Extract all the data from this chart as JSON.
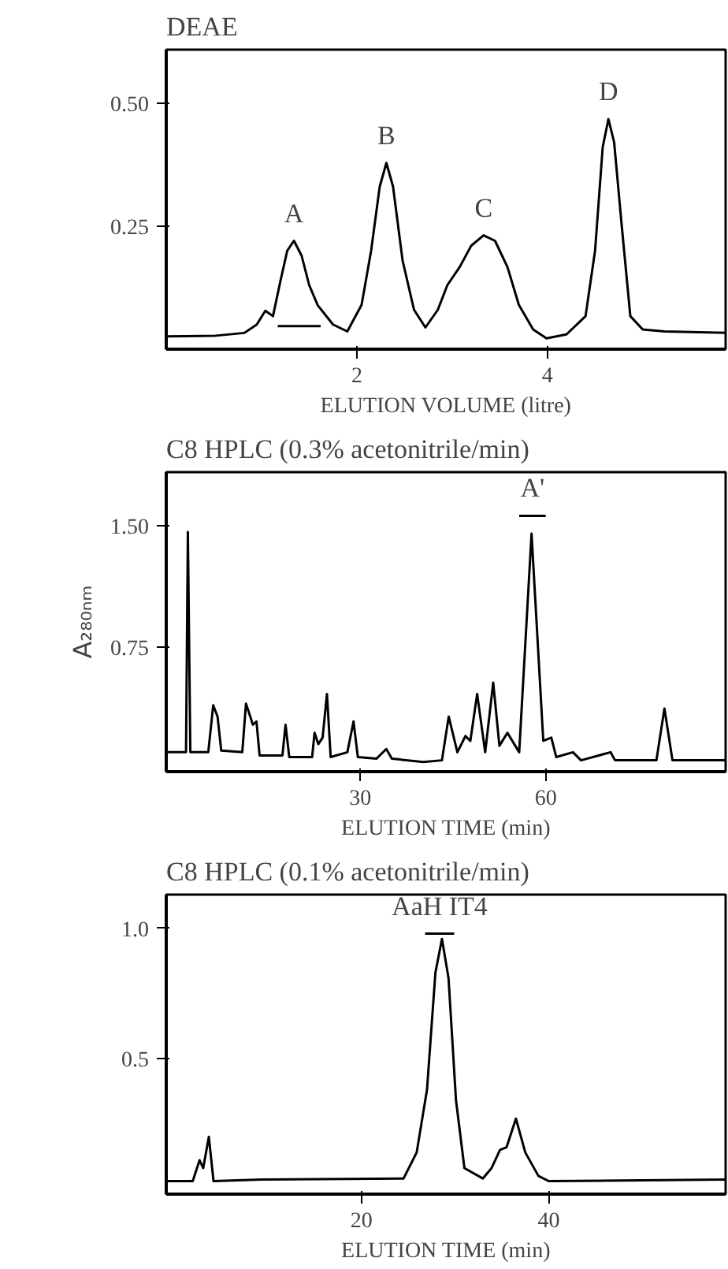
{
  "chart_data": [
    {
      "type": "line",
      "title": "DEAE",
      "xlabel": "ELUTION VOLUME (litre)",
      "xlim": [
        0,
        5.87
      ],
      "ylim": [
        0,
        0.608
      ],
      "xticks": [
        2,
        4
      ],
      "yticks": [
        {
          "value": 0.5,
          "label": "0.50"
        },
        0.25
      ],
      "grid": false,
      "marker": "none",
      "series": [
        {
          "color": "#000000",
          "x": [
            0,
            0.5,
            0.82,
            0.95,
            1.04,
            1.12,
            1.2,
            1.27,
            1.34,
            1.42,
            1.5,
            1.59,
            1.75,
            1.9,
            2.05,
            2.15,
            2.24,
            2.31,
            2.38,
            2.48,
            2.6,
            2.72,
            2.85,
            2.95,
            3.08,
            3.2,
            3.33,
            3.45,
            3.58,
            3.7,
            3.85,
            3.99,
            4.2,
            4.4,
            4.5,
            4.58,
            4.64,
            4.7,
            4.78,
            4.87,
            5.0,
            5.23,
            5.87
          ],
          "values": [
            0.026,
            0.027,
            0.033,
            0.05,
            0.078,
            0.067,
            0.14,
            0.2,
            0.22,
            0.19,
            0.13,
            0.089,
            0.05,
            0.036,
            0.09,
            0.2,
            0.33,
            0.378,
            0.33,
            0.18,
            0.08,
            0.044,
            0.08,
            0.13,
            0.167,
            0.21,
            0.231,
            0.22,
            0.167,
            0.09,
            0.04,
            0.022,
            0.03,
            0.067,
            0.2,
            0.41,
            0.467,
            0.42,
            0.25,
            0.067,
            0.04,
            0.036,
            0.033
          ]
        },
        {
          "type": "line",
          "color": "#000000",
          "x": [
            1.17,
            1.62
          ],
          "values": [
            0.047,
            0.047
          ]
        }
      ],
      "annotations": [
        {
          "text": "A",
          "x": 1.34,
          "y": 0.22
        },
        {
          "text": "B",
          "x": 2.31,
          "y": 0.378
        },
        {
          "text": "C",
          "x": 3.33,
          "y": 0.231
        },
        {
          "text": "D",
          "x": 4.64,
          "y": 0.467
        }
      ]
    },
    {
      "type": "line",
      "title": "C8 HPLC (0.3% acetonitrile/min)",
      "xlabel": "ELUTION TIME (min)",
      "ylabel": "A₂₈₀ₙₘ",
      "xlim": [
        -1.4,
        89.1
      ],
      "ylim": [
        -0.02,
        1.83
      ],
      "xticks": [
        30,
        60
      ],
      "yticks": [
        {
          "value": 1.5,
          "label": "1.50"
        },
        0.75
      ],
      "grid": false,
      "marker": "none",
      "series": [
        {
          "color": "#000000",
          "x": [
            -1.4,
            1.8,
            2.1,
            2.5,
            5.4,
            6.2,
            6.9,
            7.5,
            10.9,
            11.5,
            12.2,
            12.6,
            13.2,
            13.7,
            17.4,
            17.9,
            18.5,
            22.2,
            22.6,
            23.2,
            23.9,
            24.6,
            25.2,
            27.9,
            28.9,
            29.6,
            32.6,
            34.2,
            35.1,
            40.2,
            43.2,
            44.3,
            45.7,
            47.0,
            47.8,
            48.9,
            50.2,
            51.5,
            52.5,
            53.8,
            55.7,
            57.7,
            59.6,
            60.9,
            61.7,
            64.4,
            65.7,
            70.5,
            71.2,
            77.9,
            79.2,
            80.5,
            89.1
          ],
          "values": [
            0.1,
            0.1,
            1.46,
            0.1,
            0.1,
            0.39,
            0.32,
            0.11,
            0.1,
            0.4,
            0.32,
            0.27,
            0.29,
            0.08,
            0.08,
            0.27,
            0.07,
            0.07,
            0.22,
            0.15,
            0.19,
            0.46,
            0.07,
            0.1,
            0.29,
            0.07,
            0.06,
            0.12,
            0.06,
            0.04,
            0.05,
            0.32,
            0.1,
            0.2,
            0.17,
            0.46,
            0.1,
            0.53,
            0.14,
            0.22,
            0.1,
            1.45,
            0.17,
            0.19,
            0.07,
            0.1,
            0.05,
            0.1,
            0.05,
            0.05,
            0.37,
            0.05,
            0.05
          ]
        },
        {
          "type": "line",
          "color": "#000000",
          "x": [
            55.7,
            60.0
          ],
          "values": [
            1.56,
            1.56
          ]
        }
      ],
      "annotations": [
        {
          "text": "A'",
          "x": 57.85,
          "y": 1.56
        }
      ]
    },
    {
      "type": "line",
      "title": "C8 HPLC (0.1% acetonitrile/min)",
      "xlabel": "ELUTION TIME (min)",
      "xlim": [
        -0.85,
        58.9
      ],
      "ylim": [
        -0.02,
        1.13
      ],
      "xticks": [
        20,
        40
      ],
      "yticks": [
        {
          "value": 1.0,
          "label": "1.0"
        },
        0.5
      ],
      "grid": false,
      "marker": "none",
      "series": [
        {
          "color": "#000000",
          "x": [
            -0.84,
            1.98,
            2.71,
            3.1,
            3.7,
            4.2,
            9.3,
            24.5,
            25.9,
            27.0,
            27.9,
            28.6,
            29.3,
            30.1,
            31.0,
            32.96,
            33.9,
            34.8,
            35.5,
            36.5,
            37.5,
            38.9,
            40.0,
            58.9
          ],
          "values": [
            0.03,
            0.03,
            0.11,
            0.08,
            0.2,
            0.03,
            0.036,
            0.04,
            0.14,
            0.38,
            0.83,
            0.96,
            0.81,
            0.34,
            0.08,
            0.04,
            0.08,
            0.15,
            0.16,
            0.27,
            0.14,
            0.05,
            0.03,
            0.036
          ]
        },
        {
          "type": "line",
          "color": "#000000",
          "x": [
            26.8,
            29.9
          ],
          "values": [
            0.98,
            0.98
          ]
        }
      ],
      "annotations": [
        {
          "text": "AaH IT4",
          "x": 28.35,
          "y": 0.98
        }
      ]
    }
  ]
}
